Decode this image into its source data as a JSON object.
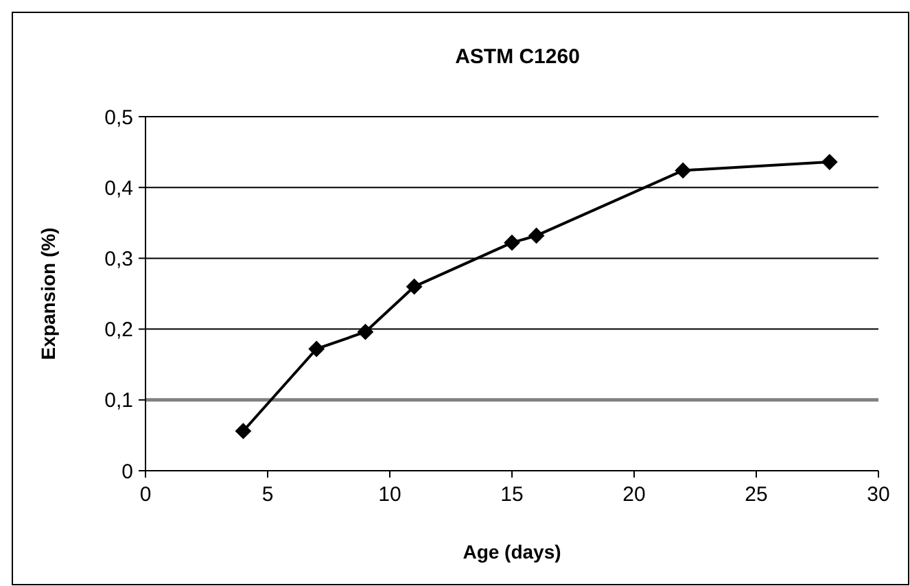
{
  "chart_data": {
    "type": "line",
    "title": "ASTM C1260",
    "xlabel": "Age (days)",
    "ylabel": "Expansion (%)",
    "x": [
      4,
      7,
      9,
      11,
      15,
      16,
      22,
      28
    ],
    "series": [
      {
        "color": "#000000",
        "values": [
          0.056,
          0.172,
          0.196,
          0.26,
          0.322,
          0.332,
          0.424,
          0.436
        ]
      }
    ],
    "xlim": [
      0,
      30
    ],
    "xticks": [
      0,
      5,
      10,
      15,
      20,
      25,
      30
    ],
    "ylim": [
      0,
      0.5
    ],
    "yticks": [
      0,
      {
        "value": 0.1,
        "label": "0,1"
      },
      {
        "value": 0.2,
        "label": "0,2"
      },
      {
        "value": 0.3,
        "label": "0,3"
      },
      {
        "value": 0.4,
        "label": "0,4"
      },
      {
        "value": 0.5,
        "label": "0,5"
      }
    ],
    "grid": "y",
    "marker": "diamond",
    "line_style": "solid",
    "ref_lines": [
      {
        "axis": "y",
        "value": 0.1,
        "color": "#808080"
      }
    ]
  }
}
